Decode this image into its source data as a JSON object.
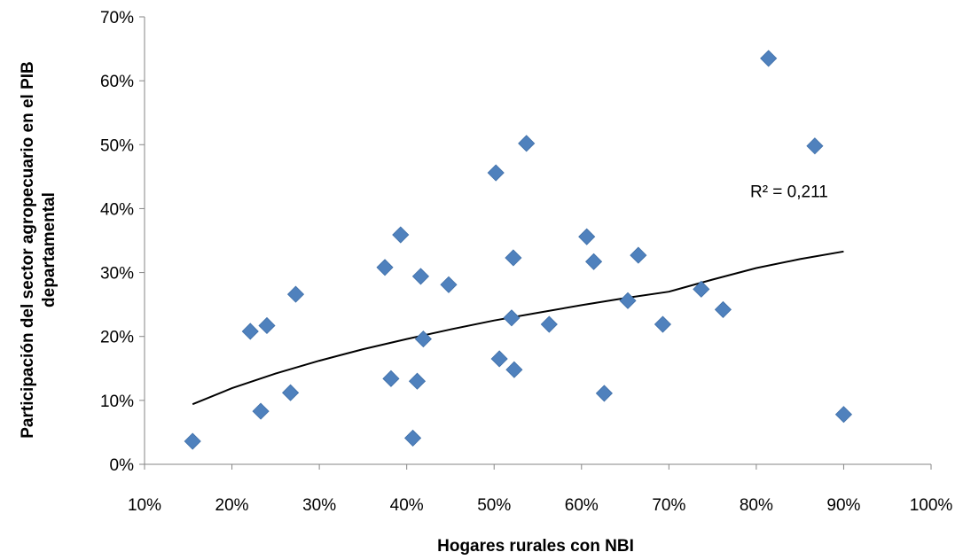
{
  "chart_data": {
    "type": "scatter",
    "xlabel": "Hogares rurales con NBI",
    "ylabel_lines": [
      "Participación del sector agropecuario en el PIB",
      "departamental"
    ],
    "xlim": [
      0.1,
      1.0
    ],
    "ylim": [
      0.0,
      0.7
    ],
    "x_ticks": [
      0.1,
      0.2,
      0.3,
      0.4,
      0.5,
      0.6,
      0.7,
      0.8,
      0.9,
      1.0
    ],
    "x_tick_labels": [
      "10%",
      "20%",
      "30%",
      "40%",
      "50%",
      "60%",
      "70%",
      "80%",
      "90%",
      "100%"
    ],
    "y_ticks": [
      0.0,
      0.1,
      0.2,
      0.3,
      0.4,
      0.5,
      0.6,
      0.7
    ],
    "y_tick_labels": [
      "0%",
      "10%",
      "20%",
      "30%",
      "40%",
      "50%",
      "60%",
      "70%"
    ],
    "marker": "diamond",
    "marker_color": "#4F81BD",
    "trendline_color": "#000000",
    "grid": false,
    "points": [
      {
        "x": 0.155,
        "y": 0.036
      },
      {
        "x": 0.221,
        "y": 0.208
      },
      {
        "x": 0.233,
        "y": 0.083
      },
      {
        "x": 0.24,
        "y": 0.217
      },
      {
        "x": 0.267,
        "y": 0.112
      },
      {
        "x": 0.273,
        "y": 0.266
      },
      {
        "x": 0.375,
        "y": 0.308
      },
      {
        "x": 0.382,
        "y": 0.134
      },
      {
        "x": 0.393,
        "y": 0.359
      },
      {
        "x": 0.407,
        "y": 0.041
      },
      {
        "x": 0.412,
        "y": 0.13
      },
      {
        "x": 0.416,
        "y": 0.294
      },
      {
        "x": 0.419,
        "y": 0.196
      },
      {
        "x": 0.448,
        "y": 0.281
      },
      {
        "x": 0.502,
        "y": 0.456
      },
      {
        "x": 0.506,
        "y": 0.165
      },
      {
        "x": 0.52,
        "y": 0.229
      },
      {
        "x": 0.522,
        "y": 0.323
      },
      {
        "x": 0.523,
        "y": 0.148
      },
      {
        "x": 0.537,
        "y": 0.502
      },
      {
        "x": 0.563,
        "y": 0.219
      },
      {
        "x": 0.606,
        "y": 0.356
      },
      {
        "x": 0.614,
        "y": 0.317
      },
      {
        "x": 0.626,
        "y": 0.111
      },
      {
        "x": 0.653,
        "y": 0.256
      },
      {
        "x": 0.665,
        "y": 0.327
      },
      {
        "x": 0.693,
        "y": 0.219
      },
      {
        "x": 0.737,
        "y": 0.274
      },
      {
        "x": 0.762,
        "y": 0.242
      },
      {
        "x": 0.814,
        "y": 0.635
      },
      {
        "x": 0.867,
        "y": 0.498
      },
      {
        "x": 0.9,
        "y": 0.078
      }
    ],
    "trendline": {
      "type": "logarithmic",
      "x": [
        0.155,
        0.2,
        0.25,
        0.3,
        0.35,
        0.4,
        0.45,
        0.5,
        0.55,
        0.6,
        0.65,
        0.7,
        0.75,
        0.8,
        0.85,
        0.9
      ],
      "y": [
        0.094,
        0.119,
        0.142,
        0.162,
        0.18,
        0.196,
        0.211,
        0.225,
        0.237,
        0.249,
        0.26,
        0.27,
        0.289,
        0.307,
        0.321,
        0.333
      ]
    },
    "annotations": [
      {
        "text": "R² = 0,211",
        "x": 0.793,
        "y": 0.418
      }
    ]
  }
}
